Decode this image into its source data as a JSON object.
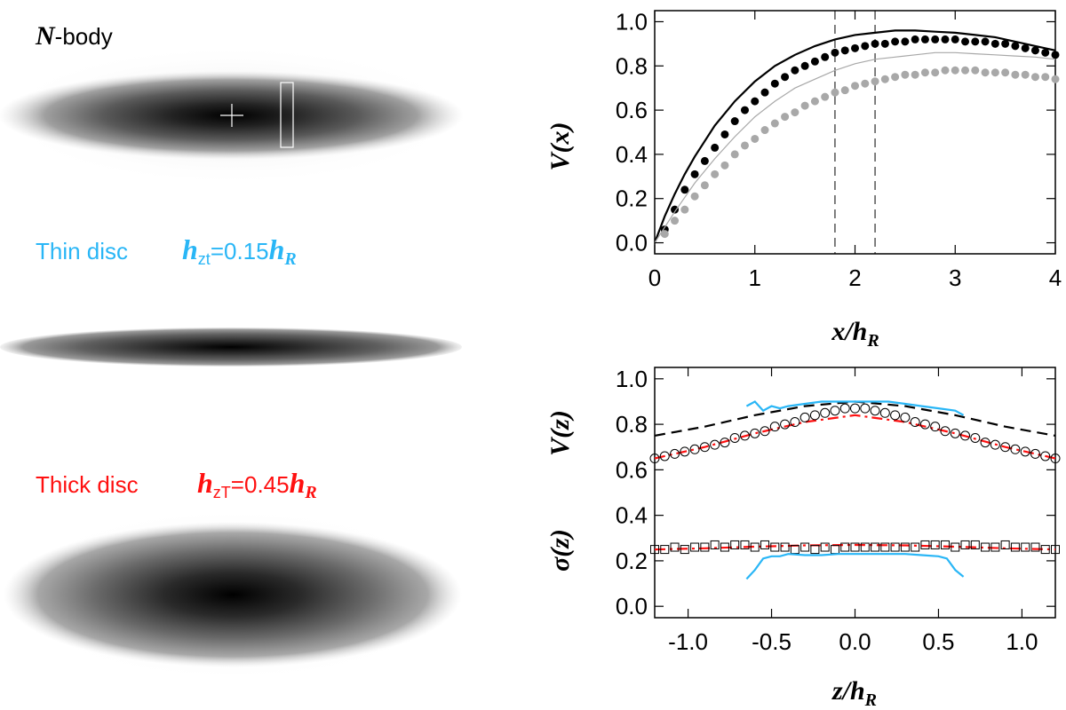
{
  "panels": {
    "nbody": {
      "label_sym": "N",
      "label_rest": "-body"
    },
    "thin": {
      "label": "Thin disc",
      "h_sym": "h",
      "h_sub": "zt",
      "h_eq": "=0.15",
      "h_R_sym": "h",
      "h_R_sub": "R",
      "color": "#29b6f6"
    },
    "thick": {
      "label": "Thick disc",
      "h_sym": "h",
      "h_sub": "zT",
      "h_eq": "=0.45",
      "h_R_sym": "h",
      "h_R_sub": "R",
      "color": "#ff1010"
    }
  },
  "chart_data": [
    {
      "type": "line",
      "title": "",
      "xlabel": "x/h_R",
      "ylabel": "V(x)",
      "xlabel_parts": {
        "main": "x/h",
        "sub": "R"
      },
      "ylabel_text": "V(x)",
      "xlim": [
        0,
        4
      ],
      "ylim": [
        -0.05,
        1.05
      ],
      "xticks": [
        "0",
        "1",
        "2",
        "3",
        "4"
      ],
      "yticks": [
        "0.0",
        "0.2",
        "0.4",
        "0.6",
        "0.8",
        "1.0"
      ],
      "vlines": [
        1.8,
        2.2
      ],
      "series": [
        {
          "name": "black line",
          "style": "line",
          "color": "#000000",
          "x": [
            0,
            0.1,
            0.2,
            0.3,
            0.4,
            0.6,
            0.8,
            1.0,
            1.2,
            1.4,
            1.6,
            1.8,
            2.0,
            2.2,
            2.4,
            2.6,
            2.8,
            3.0,
            3.2,
            3.4,
            3.6,
            3.8,
            4.0
          ],
          "y": [
            0.0,
            0.12,
            0.22,
            0.31,
            0.39,
            0.53,
            0.64,
            0.73,
            0.8,
            0.85,
            0.89,
            0.92,
            0.94,
            0.95,
            0.96,
            0.96,
            0.955,
            0.95,
            0.94,
            0.93,
            0.91,
            0.89,
            0.87
          ]
        },
        {
          "name": "black dots",
          "style": "points",
          "color": "#000000",
          "x": [
            0.1,
            0.2,
            0.3,
            0.4,
            0.5,
            0.6,
            0.7,
            0.8,
            0.9,
            1.0,
            1.1,
            1.2,
            1.3,
            1.4,
            1.5,
            1.6,
            1.7,
            1.8,
            1.9,
            2.0,
            2.1,
            2.2,
            2.3,
            2.4,
            2.5,
            2.6,
            2.7,
            2.8,
            2.9,
            3.0,
            3.1,
            3.2,
            3.3,
            3.4,
            3.5,
            3.6,
            3.7,
            3.8,
            3.9,
            4.0
          ],
          "y": [
            0.06,
            0.15,
            0.24,
            0.31,
            0.37,
            0.43,
            0.49,
            0.55,
            0.6,
            0.64,
            0.68,
            0.72,
            0.75,
            0.78,
            0.8,
            0.82,
            0.84,
            0.86,
            0.87,
            0.88,
            0.89,
            0.9,
            0.9,
            0.91,
            0.91,
            0.92,
            0.92,
            0.92,
            0.92,
            0.92,
            0.91,
            0.91,
            0.91,
            0.9,
            0.9,
            0.89,
            0.88,
            0.87,
            0.86,
            0.85
          ]
        },
        {
          "name": "grey line",
          "style": "line",
          "color": "#a8a8a8",
          "x": [
            0,
            0.2,
            0.4,
            0.6,
            0.8,
            1.0,
            1.2,
            1.4,
            1.6,
            1.8,
            2.0,
            2.2,
            2.4,
            2.6,
            2.8,
            3.0,
            3.2,
            3.4,
            3.6,
            3.8,
            4.0
          ],
          "y": [
            0.0,
            0.14,
            0.27,
            0.38,
            0.48,
            0.57,
            0.64,
            0.7,
            0.74,
            0.78,
            0.81,
            0.83,
            0.84,
            0.85,
            0.86,
            0.86,
            0.855,
            0.85,
            0.845,
            0.84,
            0.83
          ]
        },
        {
          "name": "grey dots",
          "style": "points",
          "color": "#a8a8a8",
          "x": [
            0.1,
            0.2,
            0.3,
            0.4,
            0.5,
            0.6,
            0.7,
            0.8,
            0.9,
            1.0,
            1.1,
            1.2,
            1.3,
            1.4,
            1.5,
            1.6,
            1.7,
            1.8,
            1.9,
            2.0,
            2.1,
            2.2,
            2.3,
            2.4,
            2.5,
            2.6,
            2.7,
            2.8,
            2.9,
            3.0,
            3.1,
            3.2,
            3.3,
            3.4,
            3.5,
            3.6,
            3.7,
            3.8,
            3.9,
            4.0
          ],
          "y": [
            0.04,
            0.1,
            0.15,
            0.21,
            0.26,
            0.31,
            0.35,
            0.4,
            0.44,
            0.47,
            0.51,
            0.54,
            0.57,
            0.59,
            0.62,
            0.64,
            0.66,
            0.68,
            0.69,
            0.71,
            0.72,
            0.73,
            0.74,
            0.75,
            0.76,
            0.76,
            0.77,
            0.77,
            0.78,
            0.78,
            0.78,
            0.78,
            0.77,
            0.77,
            0.77,
            0.76,
            0.76,
            0.75,
            0.75,
            0.74
          ]
        }
      ]
    },
    {
      "type": "line",
      "title": "",
      "xlabel": "z/h_R",
      "ylabel": "V(z), σ(z)",
      "xlabel_parts": {
        "main": "z/h",
        "sub": "R"
      },
      "ylabel_upper": "V(z)",
      "ylabel_lower": "σ(z)",
      "xlim": [
        -1.2,
        1.2
      ],
      "ylim": [
        -0.05,
        1.05
      ],
      "xticks": [
        "-1.0",
        "-0.5",
        "0.0",
        "0.5",
        "1.0"
      ],
      "xtick_values": [
        -1.0,
        -0.5,
        0.0,
        0.5,
        1.0
      ],
      "yticks": [
        "0.0",
        "0.2",
        "0.4",
        "0.6",
        "0.8",
        "1.0"
      ],
      "series": [
        {
          "name": "black dashed",
          "style": "dashed",
          "color": "#000000",
          "x": [
            -1.2,
            -0.9,
            -0.6,
            -0.3,
            0.0,
            0.3,
            0.6,
            0.9,
            1.2
          ],
          "y": [
            0.75,
            0.79,
            0.84,
            0.88,
            0.9,
            0.88,
            0.84,
            0.79,
            0.75
          ]
        },
        {
          "name": "red dash-dot V",
          "style": "dashdot",
          "color": "#ff1010",
          "x": [
            -1.2,
            -0.9,
            -0.6,
            -0.3,
            0.0,
            0.3,
            0.6,
            0.9,
            1.2
          ],
          "y": [
            0.65,
            0.7,
            0.76,
            0.81,
            0.84,
            0.81,
            0.76,
            0.7,
            0.65
          ]
        },
        {
          "name": "open circles",
          "style": "circles",
          "color": "#000000",
          "x": [
            -1.2,
            -1.14,
            -1.08,
            -1.02,
            -0.96,
            -0.9,
            -0.84,
            -0.78,
            -0.72,
            -0.66,
            -0.6,
            -0.54,
            -0.48,
            -0.42,
            -0.36,
            -0.3,
            -0.24,
            -0.18,
            -0.12,
            -0.06,
            0.0,
            0.06,
            0.12,
            0.18,
            0.24,
            0.3,
            0.36,
            0.42,
            0.48,
            0.54,
            0.6,
            0.66,
            0.72,
            0.78,
            0.84,
            0.9,
            0.96,
            1.02,
            1.08,
            1.14,
            1.2
          ],
          "y": [
            0.65,
            0.66,
            0.67,
            0.68,
            0.69,
            0.7,
            0.71,
            0.72,
            0.74,
            0.75,
            0.76,
            0.77,
            0.79,
            0.8,
            0.81,
            0.83,
            0.84,
            0.85,
            0.86,
            0.87,
            0.87,
            0.87,
            0.86,
            0.85,
            0.84,
            0.83,
            0.81,
            0.8,
            0.79,
            0.77,
            0.76,
            0.75,
            0.74,
            0.72,
            0.71,
            0.7,
            0.69,
            0.68,
            0.67,
            0.66,
            0.65
          ]
        },
        {
          "name": "blue V",
          "style": "line",
          "color": "#29b6f6",
          "x": [
            -0.65,
            -0.6,
            -0.55,
            -0.5,
            -0.45,
            -0.4,
            -0.3,
            -0.2,
            -0.1,
            0.0,
            0.1,
            0.2,
            0.3,
            0.4,
            0.5,
            0.6,
            0.65
          ],
          "y": [
            0.88,
            0.9,
            0.86,
            0.88,
            0.87,
            0.88,
            0.89,
            0.9,
            0.9,
            0.9,
            0.9,
            0.9,
            0.89,
            0.88,
            0.87,
            0.86,
            0.84
          ]
        },
        {
          "name": "red dash-dot sigma",
          "style": "dashdot",
          "color": "#ff1010",
          "x": [
            -1.2,
            -0.9,
            -0.6,
            -0.3,
            0.0,
            0.3,
            0.6,
            0.9,
            1.2
          ],
          "y": [
            0.25,
            0.255,
            0.262,
            0.268,
            0.27,
            0.268,
            0.262,
            0.255,
            0.25
          ]
        },
        {
          "name": "open squares",
          "style": "squares",
          "color": "#000000",
          "x": [
            -1.2,
            -1.14,
            -1.08,
            -1.02,
            -0.96,
            -0.9,
            -0.84,
            -0.78,
            -0.72,
            -0.66,
            -0.6,
            -0.54,
            -0.48,
            -0.42,
            -0.36,
            -0.3,
            -0.24,
            -0.18,
            -0.12,
            -0.06,
            0.0,
            0.06,
            0.12,
            0.18,
            0.24,
            0.3,
            0.36,
            0.42,
            0.48,
            0.54,
            0.6,
            0.66,
            0.72,
            0.78,
            0.84,
            0.9,
            0.96,
            1.02,
            1.08,
            1.14,
            1.2
          ],
          "y": [
            0.25,
            0.25,
            0.26,
            0.25,
            0.26,
            0.26,
            0.27,
            0.26,
            0.27,
            0.27,
            0.26,
            0.27,
            0.26,
            0.26,
            0.25,
            0.26,
            0.25,
            0.26,
            0.25,
            0.26,
            0.26,
            0.26,
            0.26,
            0.26,
            0.26,
            0.26,
            0.26,
            0.27,
            0.27,
            0.27,
            0.26,
            0.27,
            0.27,
            0.26,
            0.26,
            0.27,
            0.26,
            0.26,
            0.26,
            0.25,
            0.25
          ]
        },
        {
          "name": "blue sigma",
          "style": "line",
          "color": "#29b6f6",
          "x": [
            -0.65,
            -0.6,
            -0.55,
            -0.5,
            -0.45,
            -0.4,
            -0.3,
            -0.2,
            -0.1,
            0.0,
            0.1,
            0.2,
            0.3,
            0.4,
            0.5,
            0.55,
            0.6,
            0.65
          ],
          "y": [
            0.12,
            0.16,
            0.21,
            0.22,
            0.22,
            0.23,
            0.225,
            0.225,
            0.23,
            0.23,
            0.23,
            0.23,
            0.23,
            0.225,
            0.22,
            0.21,
            0.16,
            0.13
          ]
        }
      ]
    }
  ]
}
